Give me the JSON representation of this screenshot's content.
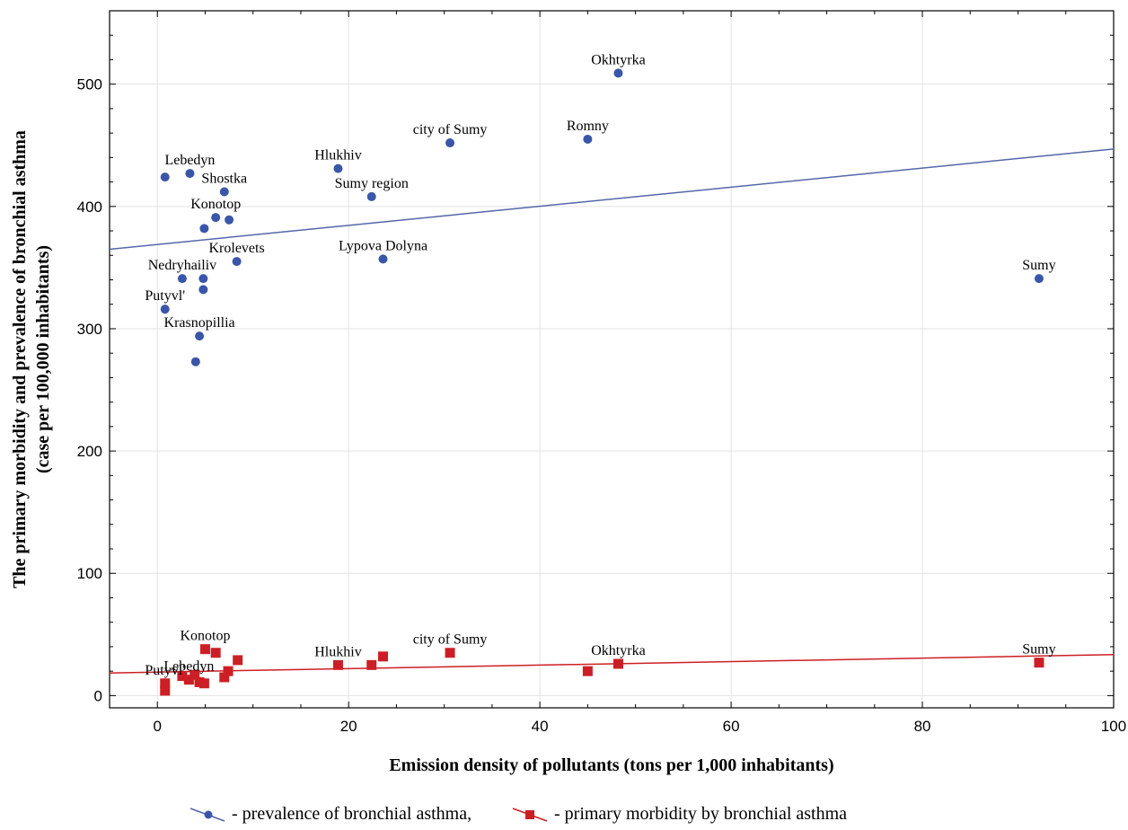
{
  "chart_data": {
    "type": "scatter",
    "xlabel": "Emission density of pollutants (tons per 1,000 inhabitants)",
    "ylabel_line1": "The primary morbidity and prevalence of bronchial asthma",
    "ylabel_line2": "(case per 100,000 inhabitants)",
    "xlim": [
      -5,
      100
    ],
    "ylim": [
      -10,
      560
    ],
    "xticks": [
      0,
      20,
      40,
      60,
      80,
      100
    ],
    "yticks": [
      0,
      100,
      200,
      300,
      400,
      500
    ],
    "grid": true,
    "legend": {
      "position": "bottom",
      "prevalence_text": "- prevalence of bronchial asthma,",
      "morbidity_text": "- primary morbidity by bronchial asthma"
    },
    "series": [
      {
        "key": "prevalence",
        "color": "#3a56a8",
        "line_color": "#5566aa",
        "marker": "circle",
        "trend": [
          [
            -5,
            365
          ],
          [
            100,
            447
          ]
        ],
        "points": [
          {
            "x": 48.2,
            "y": 509,
            "label": "Okhtyrka"
          },
          {
            "x": 45.0,
            "y": 455,
            "label": "Romny"
          },
          {
            "x": 30.6,
            "y": 452,
            "label": "city of Sumy"
          },
          {
            "x": 18.9,
            "y": 431,
            "label": "Hlukhiv"
          },
          {
            "x": 22.4,
            "y": 408,
            "label": "Sumy region"
          },
          {
            "x": 0.8,
            "y": 424,
            "label": ""
          },
          {
            "x": 3.4,
            "y": 427,
            "label": "Lebedyn"
          },
          {
            "x": 7.0,
            "y": 412,
            "label": "Shostka"
          },
          {
            "x": 6.1,
            "y": 391,
            "label": "Konotop"
          },
          {
            "x": 7.5,
            "y": 389,
            "label": ""
          },
          {
            "x": 4.9,
            "y": 382,
            "label": ""
          },
          {
            "x": 8.3,
            "y": 355,
            "label": "Krolevets"
          },
          {
            "x": 23.6,
            "y": 357,
            "label": "Lypova Dolyna"
          },
          {
            "x": 92.2,
            "y": 341,
            "label": "Sumy"
          },
          {
            "x": 2.6,
            "y": 341,
            "label": "Nedryhailiv"
          },
          {
            "x": 4.8,
            "y": 341,
            "label": ""
          },
          {
            "x": 4.8,
            "y": 332,
            "label": ""
          },
          {
            "x": 0.8,
            "y": 316,
            "label": "Putyvl'"
          },
          {
            "x": 4.4,
            "y": 294,
            "label": "Krasnopillia"
          },
          {
            "x": 4.0,
            "y": 273,
            "label": ""
          }
        ]
      },
      {
        "key": "morbidity",
        "color": "#cc1f25",
        "line_color": "#cc1f25",
        "marker": "square",
        "trend": [
          [
            -5,
            18.5
          ],
          [
            100,
            33.5
          ]
        ],
        "points": [
          {
            "x": 5.0,
            "y": 38,
            "label": "Konotop"
          },
          {
            "x": 6.1,
            "y": 35,
            "label": ""
          },
          {
            "x": 8.4,
            "y": 29,
            "label": ""
          },
          {
            "x": 7.4,
            "y": 20,
            "label": ""
          },
          {
            "x": 7.0,
            "y": 15,
            "label": ""
          },
          {
            "x": 18.9,
            "y": 25,
            "label": "Hlukhiv"
          },
          {
            "x": 22.4,
            "y": 25,
            "label": ""
          },
          {
            "x": 23.6,
            "y": 32,
            "label": ""
          },
          {
            "x": 30.6,
            "y": 35,
            "label": "city of Sumy"
          },
          {
            "x": 45.0,
            "y": 20,
            "label": ""
          },
          {
            "x": 48.2,
            "y": 26,
            "label": "Okhtyrka"
          },
          {
            "x": 92.2,
            "y": 27,
            "label": "Sumy"
          },
          {
            "x": 2.6,
            "y": 16,
            "label": ""
          },
          {
            "x": 3.3,
            "y": 13,
            "label": "Lebedyn"
          },
          {
            "x": 3.9,
            "y": 17,
            "label": ""
          },
          {
            "x": 4.4,
            "y": 11,
            "label": ""
          },
          {
            "x": 4.9,
            "y": 10,
            "label": ""
          },
          {
            "x": 0.8,
            "y": 10,
            "label": "Putyvl'"
          },
          {
            "x": 0.8,
            "y": 4,
            "label": ""
          }
        ]
      }
    ]
  }
}
